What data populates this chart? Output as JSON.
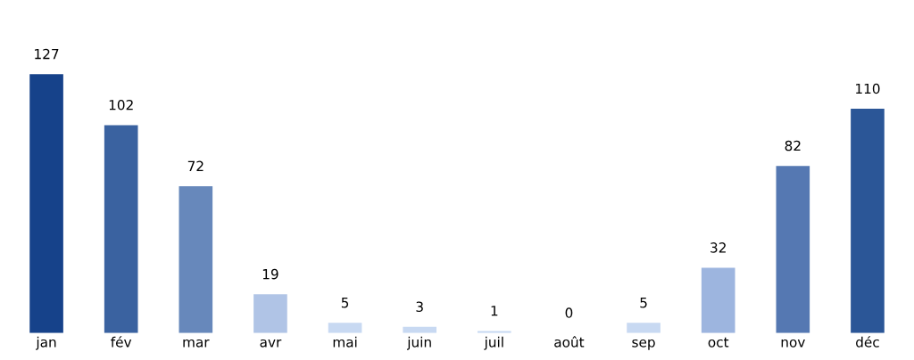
{
  "chart_data": {
    "type": "bar",
    "categories": [
      "jan",
      "fév",
      "mar",
      "avr",
      "mai",
      "juin",
      "juil",
      "août",
      "sep",
      "oct",
      "nov",
      "déc"
    ],
    "values": [
      127,
      102,
      72,
      19,
      5,
      3,
      1,
      0,
      5,
      32,
      82,
      110
    ],
    "colors": [
      "#16428a",
      "#3a62a0",
      "#6788bb",
      "#b0c4e6",
      "#c8d9f2",
      "#c8d9f2",
      "#c8d9f2",
      "#c8d9f2",
      "#c8d9f2",
      "#9db5df",
      "#5578b2",
      "#2b5697"
    ],
    "data_labels": true,
    "grid": false,
    "legend": false
  }
}
